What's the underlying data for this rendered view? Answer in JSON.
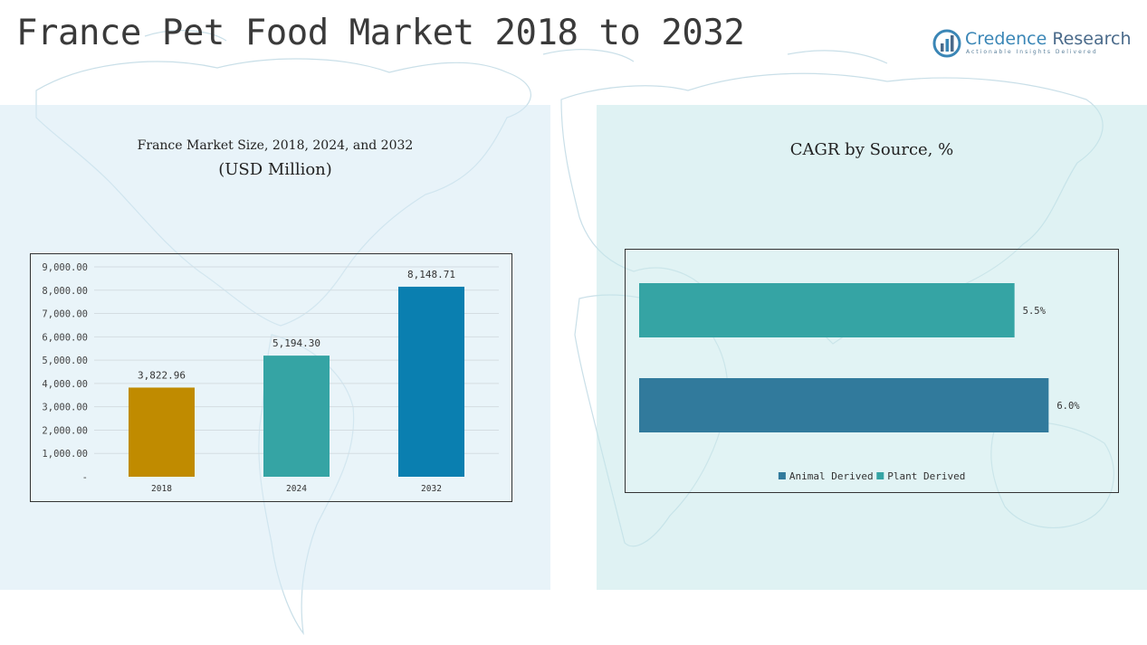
{
  "page": {
    "title": "France Pet Food Market 2018 to 2032",
    "logo": {
      "name_part1": "Credence",
      "name_part2": "Research",
      "tagline": "Actionable Insights Delivered"
    }
  },
  "chart_data": [
    {
      "type": "bar",
      "title": "France Market Size, 2018, 2024, and 2032",
      "subtitle": "(USD Million)",
      "categories": [
        "2018",
        "2024",
        "2032"
      ],
      "values": [
        3822.96,
        5194.3,
        8148.71
      ],
      "value_labels": [
        "3,822.96",
        "5,194.30",
        "8,148.71"
      ],
      "colors": [
        "#c08b00",
        "#35a4a4",
        "#0a7fb0"
      ],
      "ylim": [
        0,
        9000
      ],
      "yticks": [
        0,
        1000,
        2000,
        3000,
        4000,
        5000,
        6000,
        7000,
        8000,
        9000
      ],
      "ytick_labels": [
        "-",
        "1,000.00",
        "2,000.00",
        "3,000.00",
        "4,000.00",
        "5,000.00",
        "6,000.00",
        "7,000.00",
        "8,000.00",
        "9,000.00"
      ],
      "grid": true
    },
    {
      "type": "bar",
      "orientation": "horizontal",
      "title": "CAGR by Source, %",
      "categories": [
        "Plant Derived",
        "Animal Derived"
      ],
      "values": [
        5.5,
        6.0
      ],
      "value_labels": [
        "5.5%",
        "6.0%"
      ],
      "colors": [
        "#35a4a4",
        "#317a9c"
      ],
      "xlim": [
        0,
        6.4
      ],
      "legend": {
        "placement": "bottom",
        "entries": [
          {
            "name": "Animal Derived",
            "color": "#317a9c"
          },
          {
            "name": "Plant Derived",
            "color": "#35a4a4"
          }
        ]
      }
    }
  ]
}
